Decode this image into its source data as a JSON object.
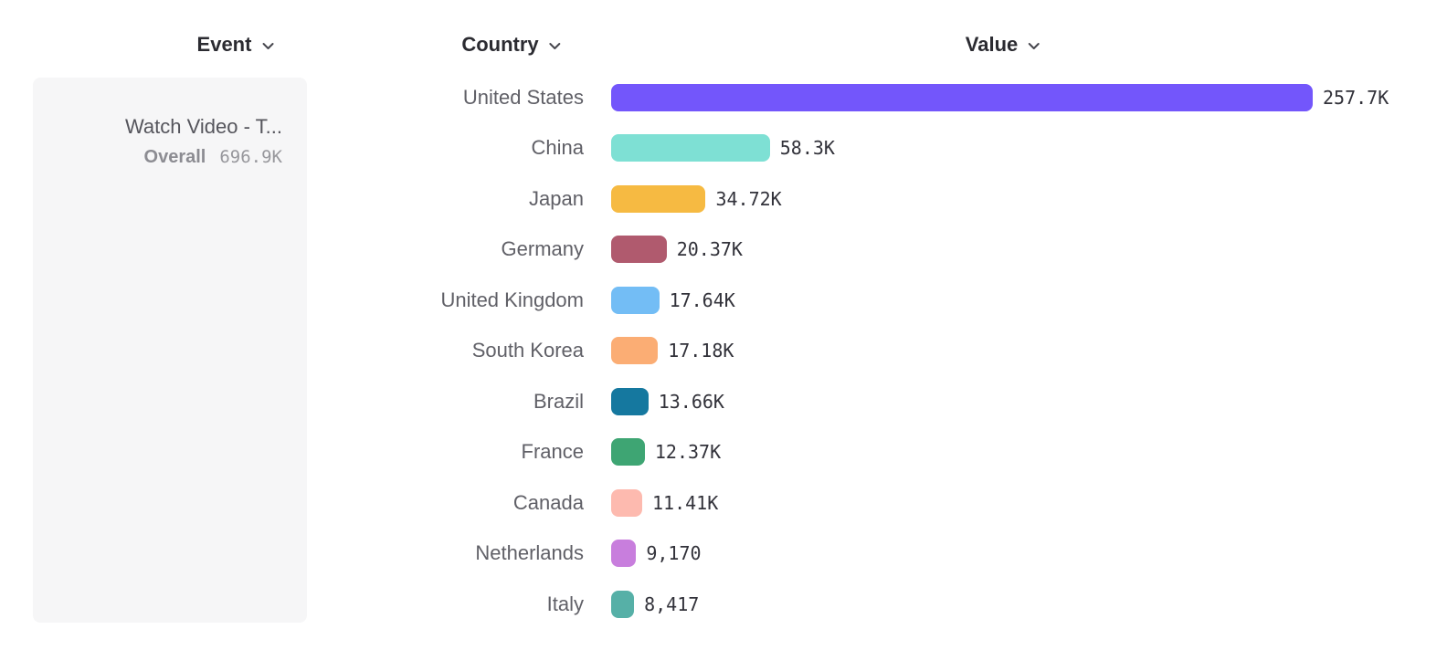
{
  "columns": {
    "event": {
      "label": "Event"
    },
    "country": {
      "label": "Country"
    },
    "value": {
      "label": "Value"
    }
  },
  "event_card": {
    "title": "Watch Video - T...",
    "metric_label": "Overall",
    "metric_value": "696.9K"
  },
  "icons": {
    "chevron_down": "⌄"
  },
  "chart_data": {
    "type": "bar",
    "orientation": "horizontal",
    "title": "",
    "xlabel": "",
    "ylabel": "Country",
    "categories": [
      "United States",
      "China",
      "Japan",
      "Germany",
      "United Kingdom",
      "South Korea",
      "Brazil",
      "France",
      "Canada",
      "Netherlands",
      "Italy"
    ],
    "values": [
      257700,
      58300,
      34720,
      20370,
      17640,
      17180,
      13660,
      12370,
      11410,
      9170,
      8417
    ],
    "value_labels": [
      "257.7K",
      "58.3K",
      "34.72K",
      "20.37K",
      "17.64K",
      "17.18K",
      "13.66K",
      "12.37K",
      "11.41K",
      "9,170",
      "8,417"
    ],
    "colors": [
      "#7356FB",
      "#7EE0D4",
      "#F6BA42",
      "#B05A6E",
      "#73BDF5",
      "#FBAD74",
      "#15789F",
      "#3EA573",
      "#FDBAAF",
      "#C87EDD",
      "#56B0A7"
    ],
    "xlim": [
      0,
      257700
    ],
    "grid": false,
    "legend": false
  }
}
